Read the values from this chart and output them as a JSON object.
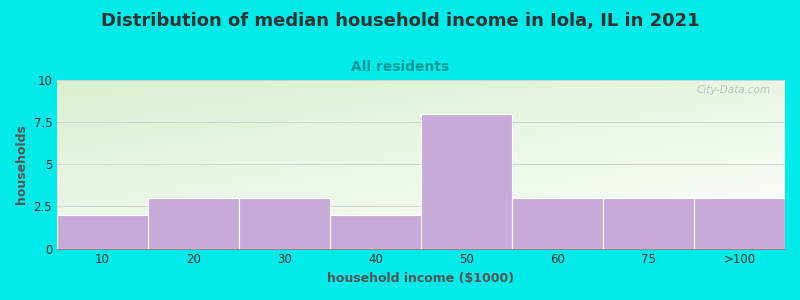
{
  "title": "Distribution of median household income in Iola, IL in 2021",
  "subtitle": "All residents",
  "xlabel": "household income ($1000)",
  "ylabel": "households",
  "categories": [
    "10",
    "20",
    "30",
    "40",
    "50",
    "60",
    "75",
    ">100"
  ],
  "values": [
    2,
    3,
    3,
    2,
    8,
    3,
    3,
    3
  ],
  "bar_color": "#c8aad8",
  "bar_edgecolor": "#ffffff",
  "background_color": "#00eaea",
  "title_color": "#333333",
  "title_fontsize": 13,
  "subtitle_fontsize": 10,
  "subtitle_color": "#009999",
  "ylabel_color": "#555555",
  "xlabel_color": "#555555",
  "axis_label_fontsize": 9,
  "tick_fontsize": 8.5,
  "ylim": [
    0,
    10
  ],
  "yticks": [
    0,
    2.5,
    5,
    7.5,
    10
  ],
  "watermark": "City-Data.com",
  "watermark_color": "#aaaaaa",
  "grid_color": "#cccccc"
}
